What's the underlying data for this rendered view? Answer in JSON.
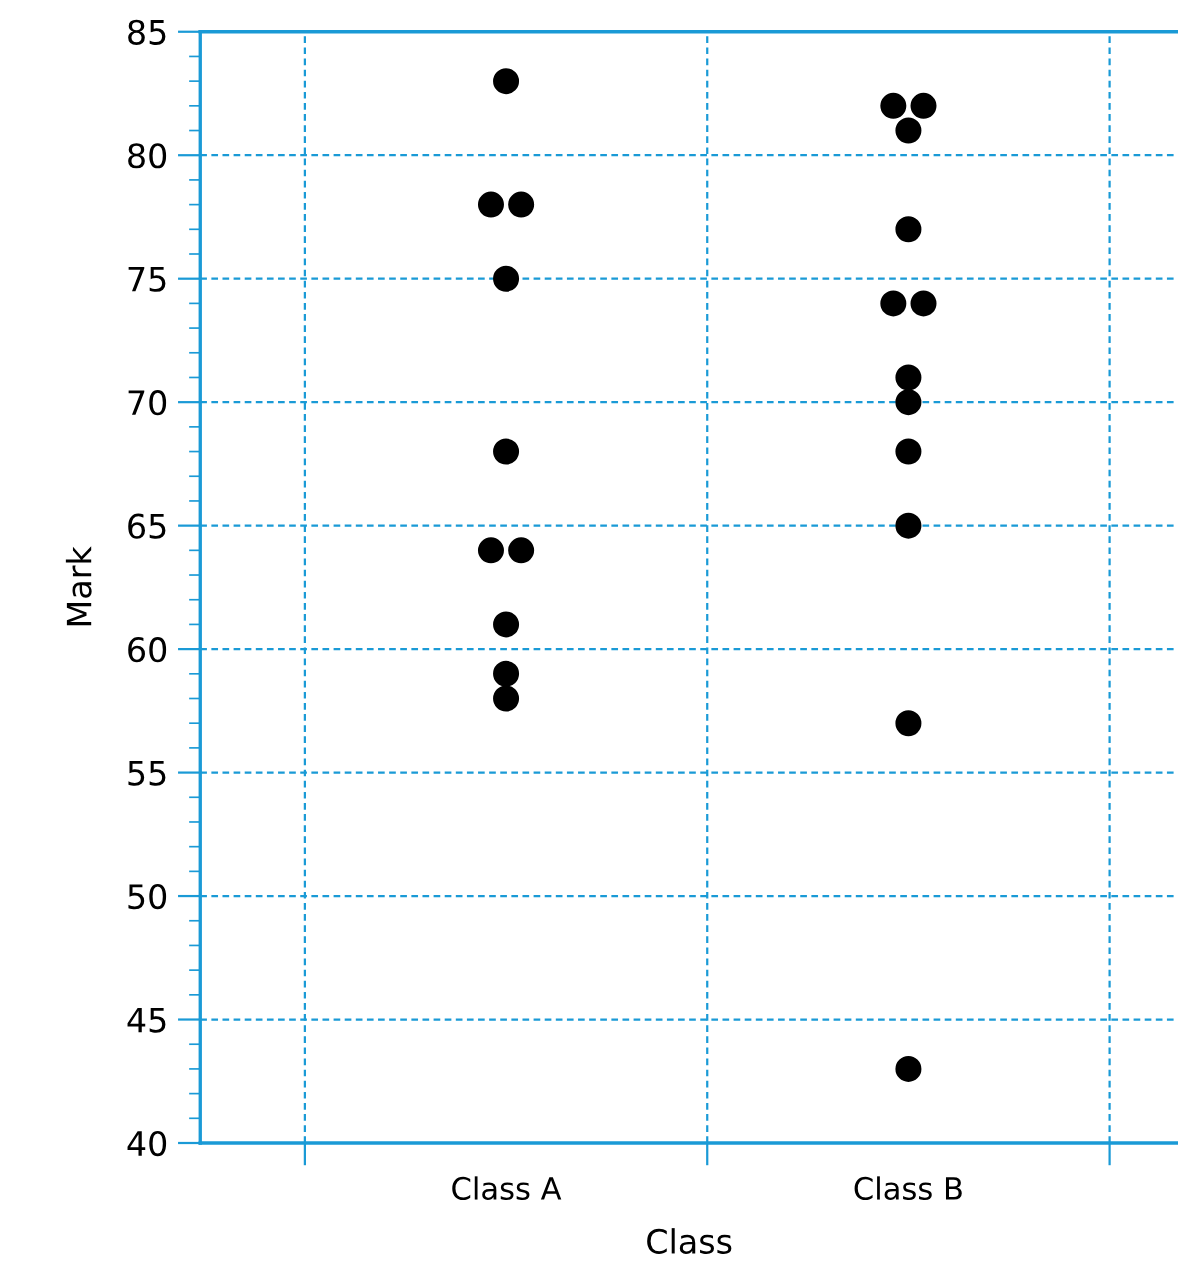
{
  "chart_data": {
    "type": "scatter",
    "xlabel": "Class",
    "ylabel": "Mark",
    "categories": [
      "Class A",
      "Class B"
    ],
    "series": [
      {
        "color": "#000000",
        "x": [
          "Class A",
          "Class A",
          "Class A",
          "Class A",
          "Class A",
          "Class A",
          "Class A",
          "Class A",
          "Class A",
          "Class A"
        ],
        "values": [
          83,
          78,
          78,
          75,
          68,
          64,
          64,
          61,
          59,
          58
        ]
      },
      {
        "color": "#000000",
        "x": [
          "Class B",
          "Class B",
          "Class B",
          "Class B",
          "Class B",
          "Class B",
          "Class B",
          "Class B",
          "Class B",
          "Class B",
          "Class B",
          "Class B"
        ],
        "values": [
          82,
          82,
          81,
          77,
          74,
          74,
          71,
          70,
          68,
          65,
          57,
          43
        ]
      }
    ],
    "ylim": [
      40,
      85
    ],
    "yticks": [
      40,
      45,
      50,
      55,
      60,
      65,
      70,
      75,
      80,
      85
    ],
    "grid": true,
    "marker": "circle"
  }
}
